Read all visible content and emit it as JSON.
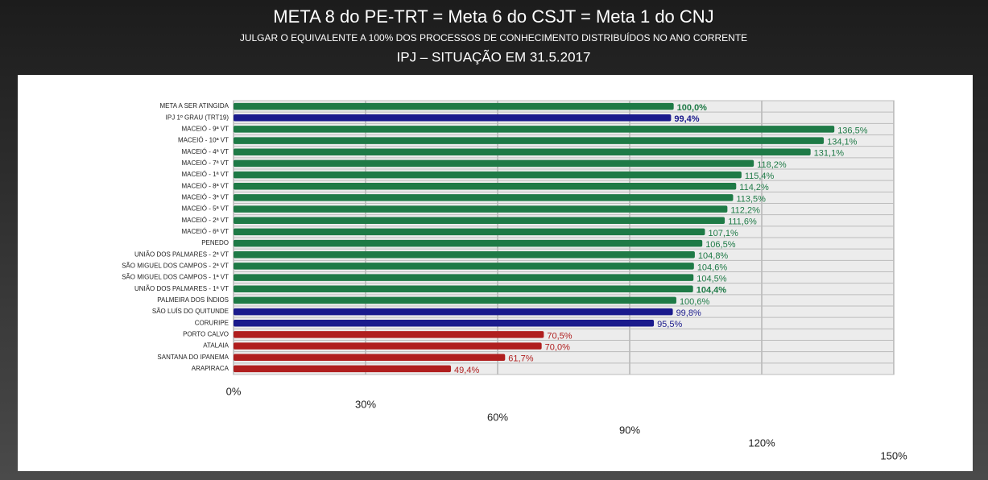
{
  "chart_data": {
    "type": "bar",
    "orientation": "horizontal",
    "title": "META 8 do PE-TRT = Meta 6 do CSJT = Meta 1 do CNJ",
    "subtitle": "JULGAR O EQUIVALENTE A 100% DOS PROCESSOS  DE CONHECIMENTO DISTRIBUÍDOS NO ANO CORRENTE",
    "subtitle2": "IPJ – SITUAÇÃO EM 31.5.2017",
    "categories": [
      "META A SER ATINGIDA",
      "IPJ 1º GRAU (TRT19)",
      "MACEIÓ - 9ª VT",
      "MACEIÓ - 10ª VT",
      "MACEIÓ - 4ª VT",
      "MACEIÓ - 7ª VT",
      "MACEIÓ - 1ª VT",
      "MACEIÓ - 8ª VT",
      "MACEIÓ - 3ª VT",
      "MACEIÓ - 5ª VT",
      "MACEIÓ - 2ª VT",
      "MACEIÓ - 6ª VT",
      "PENEDO",
      "UNIÃO DOS PALMARES - 2ª VT",
      "SÃO MIGUEL DOS CAMPOS - 2ª VT",
      "SÃO MIGUEL DOS CAMPOS - 1ª VT",
      "UNIÃO DOS PALMARES - 1ª VT",
      "PALMEIRA DOS ÍNDIOS",
      "SÃO LUÍS DO QUITUNDE",
      "CORURIPE",
      "PORTO CALVO",
      "ATALAIA",
      "SANTANA DO IPANEMA",
      "ARAPIRACA"
    ],
    "values": [
      100.0,
      99.4,
      136.5,
      134.1,
      131.1,
      118.2,
      115.4,
      114.2,
      113.5,
      112.2,
      111.6,
      107.1,
      106.5,
      104.8,
      104.6,
      104.5,
      104.4,
      100.6,
      99.8,
      95.5,
      70.5,
      70.0,
      61.7,
      49.4
    ],
    "value_labels": [
      "100,0%",
      "99,4%",
      "136,5%",
      "134,1%",
      "131,1%",
      "118,2%",
      "115,4%",
      "114,2%",
      "113,5%",
      "112,2%",
      "111,6%",
      "107,1%",
      "106,5%",
      "104,8%",
      "104,6%",
      "104,5%",
      "104,4%",
      "100,6%",
      "99,8%",
      "95,5%",
      "70,5%",
      "70,0%",
      "61,7%",
      "49,4%"
    ],
    "colors": [
      "#1e7a46",
      "#1a1a8c",
      "#1e7a46",
      "#1e7a46",
      "#1e7a46",
      "#1e7a46",
      "#1e7a46",
      "#1e7a46",
      "#1e7a46",
      "#1e7a46",
      "#1e7a46",
      "#1e7a46",
      "#1e7a46",
      "#1e7a46",
      "#1e7a46",
      "#1e7a46",
      "#1e7a46",
      "#1e7a46",
      "#1a1a8c",
      "#1a1a8c",
      "#b01e1e",
      "#b01e1e",
      "#b01e1e",
      "#b01e1e"
    ],
    "xlim": [
      0,
      150
    ],
    "xticks": [
      {
        "value": 0,
        "label": "0%"
      },
      {
        "value": 30,
        "label": "30%"
      },
      {
        "value": 60,
        "label": "60%"
      },
      {
        "value": 90,
        "label": "90%"
      },
      {
        "value": 120,
        "label": "120%"
      },
      {
        "value": 150,
        "label": "150%"
      }
    ],
    "grid": true
  }
}
